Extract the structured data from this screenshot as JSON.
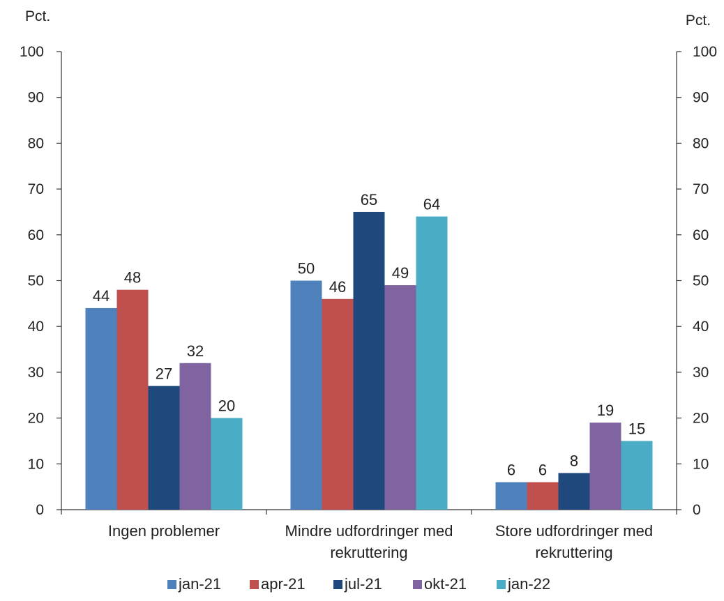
{
  "chart_data": {
    "type": "bar",
    "y_unit_left": "Pct.",
    "y_unit_right": "Pct.",
    "ylim": [
      0,
      100
    ],
    "y_ticks": [
      0,
      10,
      20,
      30,
      40,
      50,
      60,
      70,
      80,
      90,
      100
    ],
    "grid": false,
    "legend_position": "bottom",
    "categories": [
      [
        "Ingen problemer"
      ],
      [
        "Mindre udfordringer med",
        "rekruttering"
      ],
      [
        "Store udfordringer med",
        "rekruttering"
      ]
    ],
    "series": [
      {
        "name": "jan-21",
        "color": "#4F81BD",
        "values": [
          44,
          50,
          6
        ]
      },
      {
        "name": "apr-21",
        "color": "#C0504D",
        "values": [
          48,
          46,
          6
        ]
      },
      {
        "name": "jul-21",
        "color": "#1F497D",
        "values": [
          27,
          65,
          8
        ]
      },
      {
        "name": "okt-21",
        "color": "#8064A2",
        "values": [
          32,
          49,
          19
        ]
      },
      {
        "name": "jan-22",
        "color": "#4BACC6",
        "values": [
          20,
          64,
          15
        ]
      }
    ]
  }
}
